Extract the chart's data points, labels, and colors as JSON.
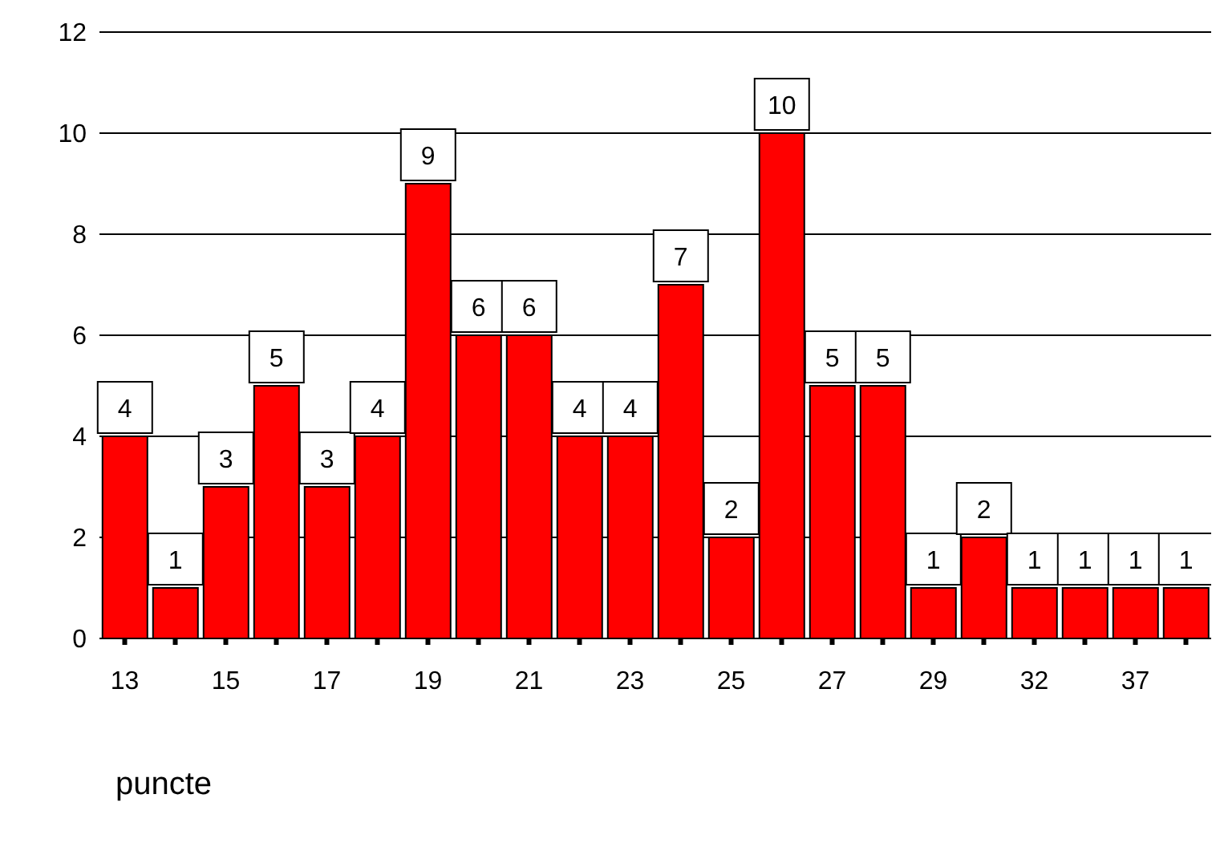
{
  "chart_data": {
    "type": "bar",
    "xlabel": "puncte",
    "categories": [
      "13",
      null,
      "15",
      null,
      "17",
      null,
      "19",
      null,
      "21",
      null,
      "23",
      null,
      "25",
      null,
      "27",
      null,
      "29",
      null,
      "32",
      null,
      "37",
      null
    ],
    "values": [
      4,
      1,
      3,
      5,
      3,
      4,
      9,
      6,
      6,
      4,
      4,
      7,
      2,
      10,
      5,
      5,
      1,
      2,
      1,
      1,
      1,
      1
    ],
    "color": "#ff0000",
    "ylim": [
      0,
      12
    ],
    "yticks": [
      0,
      2,
      4,
      6,
      8,
      10,
      12
    ],
    "grid": "y",
    "data_labels": true
  }
}
